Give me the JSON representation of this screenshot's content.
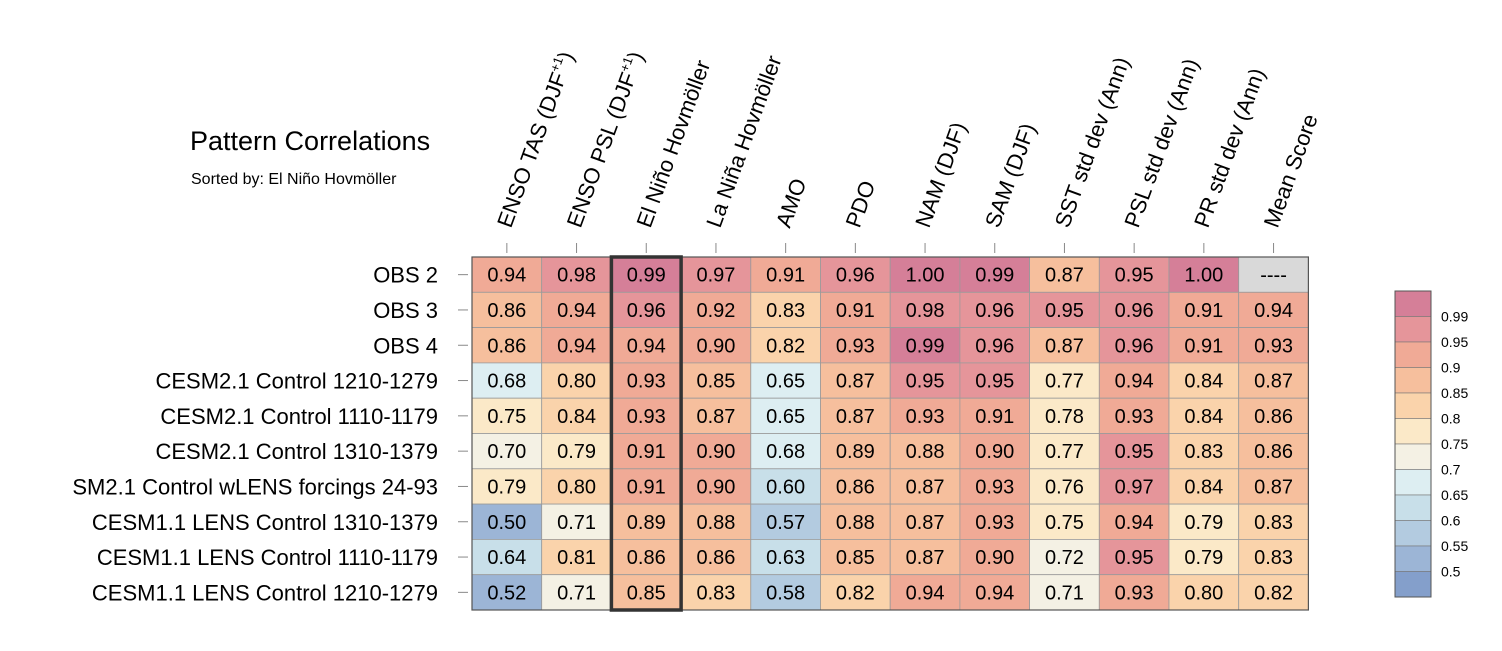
{
  "chart_data": {
    "type": "heatmap",
    "title": "Pattern Correlations",
    "subtitle": "Sorted by: El Niño Hovmöller",
    "columns": [
      "ENSO TAS (DJF+1)",
      "ENSO PSL (DJF+1)",
      "El Niño Hovmöller",
      "La Niña Hovmöller",
      "AMO",
      "PDO",
      "NAM (DJF)",
      "SAM (DJF)",
      "SST std dev (Ann)",
      "PSL std dev (Ann)",
      "PR std dev (Ann)",
      "Mean Score"
    ],
    "rows": [
      "OBS 2",
      "OBS 3",
      "OBS 4",
      "CESM2.1 Control 1210-1279",
      "CESM2.1 Control 1110-1179",
      "CESM2.1 Control 1310-1379",
      "SM2.1 Control wLENS forcings 24-93",
      "CESM1.1 LENS Control 1310-1379",
      "CESM1.1 LENS Control 1110-1179",
      "CESM1.1 LENS Control 1210-1279"
    ],
    "values": [
      [
        "0.94",
        "0.98",
        "0.99",
        "0.97",
        "0.91",
        "0.96",
        "1.00",
        "0.99",
        "0.87",
        "0.95",
        "1.00",
        "----"
      ],
      [
        "0.86",
        "0.94",
        "0.96",
        "0.92",
        "0.83",
        "0.91",
        "0.98",
        "0.96",
        "0.95",
        "0.96",
        "0.91",
        "0.94"
      ],
      [
        "0.86",
        "0.94",
        "0.94",
        "0.90",
        "0.82",
        "0.93",
        "0.99",
        "0.96",
        "0.87",
        "0.96",
        "0.91",
        "0.93"
      ],
      [
        "0.68",
        "0.80",
        "0.93",
        "0.85",
        "0.65",
        "0.87",
        "0.95",
        "0.95",
        "0.77",
        "0.94",
        "0.84",
        "0.87"
      ],
      [
        "0.75",
        "0.84",
        "0.93",
        "0.87",
        "0.65",
        "0.87",
        "0.93",
        "0.91",
        "0.78",
        "0.93",
        "0.84",
        "0.86"
      ],
      [
        "0.70",
        "0.79",
        "0.91",
        "0.90",
        "0.68",
        "0.89",
        "0.88",
        "0.90",
        "0.77",
        "0.95",
        "0.83",
        "0.86"
      ],
      [
        "0.79",
        "0.80",
        "0.91",
        "0.90",
        "0.60",
        "0.86",
        "0.87",
        "0.93",
        "0.76",
        "0.97",
        "0.84",
        "0.87"
      ],
      [
        "0.50",
        "0.71",
        "0.89",
        "0.88",
        "0.57",
        "0.88",
        "0.87",
        "0.93",
        "0.75",
        "0.94",
        "0.79",
        "0.83"
      ],
      [
        "0.64",
        "0.81",
        "0.86",
        "0.86",
        "0.63",
        "0.85",
        "0.87",
        "0.90",
        "0.72",
        "0.95",
        "0.79",
        "0.83"
      ],
      [
        "0.52",
        "0.71",
        "0.85",
        "0.83",
        "0.58",
        "0.82",
        "0.94",
        "0.94",
        "0.71",
        "0.93",
        "0.80",
        "0.82"
      ]
    ],
    "highlighted_column": "El Niño Hovmöller",
    "missing_cell_color": "#d9d9d9",
    "legend": {
      "placement": "right",
      "labels": [
        "0.99",
        "0.95",
        "0.9",
        "0.85",
        "0.8",
        "0.75",
        "0.7",
        "0.65",
        "0.6",
        "0.55",
        "0.5"
      ],
      "colors": [
        "#d57f98",
        "#e5959a",
        "#f0aa96",
        "#f6bf9d",
        "#fad3ab",
        "#fbe9c8",
        "#f4f1e4",
        "#ddeef2",
        "#c8dfe9",
        "#b3cbe0",
        "#9cb5d6",
        "#849fcb"
      ],
      "thresholds": [
        0.99,
        0.95,
        0.9,
        0.85,
        0.8,
        0.75,
        0.7,
        0.65,
        0.6,
        0.55,
        0.5
      ]
    }
  }
}
